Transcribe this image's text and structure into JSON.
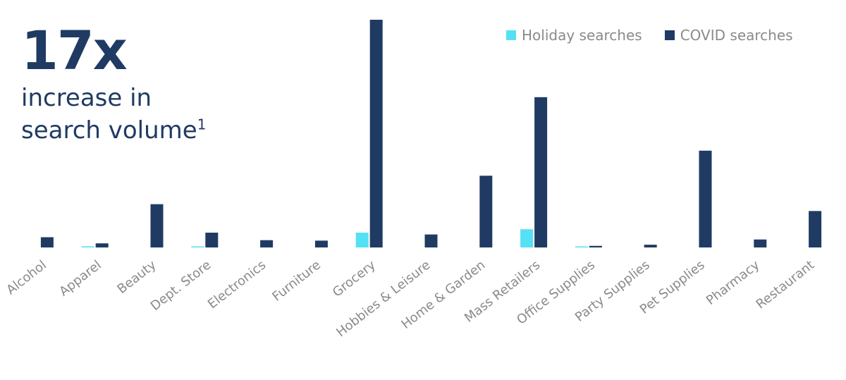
{
  "headline": {
    "big": "17x",
    "line1": "increase in",
    "line2": "search volume",
    "footnote": "1"
  },
  "colors": {
    "holiday": "#55e1f5",
    "covid": "#1f3b63",
    "headline": "#1f3b63",
    "label": "#8a8a8a"
  },
  "chart_data": {
    "type": "bar",
    "categories": [
      "Alcohol",
      "Apparel",
      "Beauty",
      "Dept. Store",
      "Electronics",
      "Furniture",
      "Grocery",
      "Hobbies & Leisure",
      "Home & Garden",
      "Mass Retailers",
      "Office Supplies",
      "Party Supplies",
      "Pet Supplies",
      "Pharmacy",
      "Restaurant"
    ],
    "series": [
      {
        "name": "Holiday searches",
        "values": [
          0,
          0.5,
          0,
          0.3,
          0,
          0,
          6.5,
          0,
          0,
          8.0,
          0.2,
          0,
          0,
          0,
          0
        ]
      },
      {
        "name": "COVID searches",
        "values": [
          4.5,
          1.8,
          19.0,
          6.5,
          3.2,
          3.0,
          100,
          5.7,
          31.5,
          66,
          0.7,
          1.2,
          42.5,
          3.5,
          16.0
        ]
      }
    ],
    "ylim": [
      0,
      100
    ],
    "grid": false,
    "legend": "top-right",
    "title": "",
    "xlabel": "",
    "ylabel": ""
  }
}
